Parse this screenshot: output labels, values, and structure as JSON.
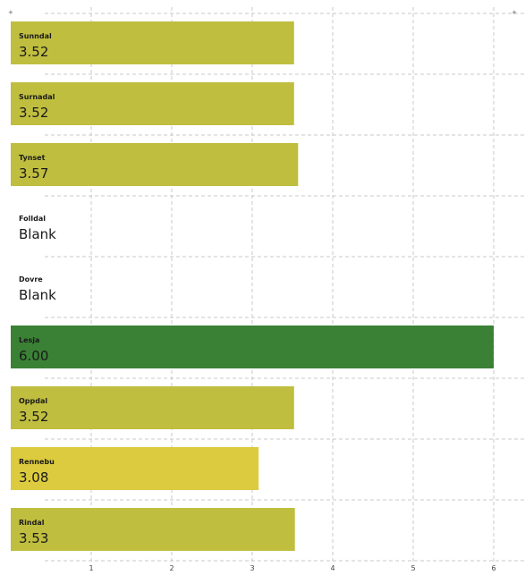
{
  "chart_data": {
    "type": "bar",
    "orientation": "horizontal",
    "categories": [
      "Sunndal",
      "Surnadal",
      "Tynset",
      "Folldal",
      "Dovre",
      "Lesja",
      "Oppdal",
      "Rennebu",
      "Rindal"
    ],
    "values": [
      3.52,
      3.52,
      3.57,
      null,
      null,
      6.0,
      3.52,
      3.08,
      3.53
    ],
    "value_labels": [
      "3.52",
      "3.52",
      "3.57",
      "Blank",
      "Blank",
      "6.00",
      "3.52",
      "3.08",
      "3.53"
    ],
    "bar_colors": [
      "#bfbe3f",
      "#bfbe3f",
      "#bfbe3f",
      null,
      null,
      "#3a8135",
      "#bfbe3f",
      "#dccb3e",
      "#bfbe3f"
    ],
    "xlim": [
      0,
      6.4
    ],
    "xticks": [
      1,
      2,
      3,
      4,
      5,
      6
    ],
    "grid": true,
    "title": "",
    "xlabel": "",
    "ylabel": ""
  }
}
